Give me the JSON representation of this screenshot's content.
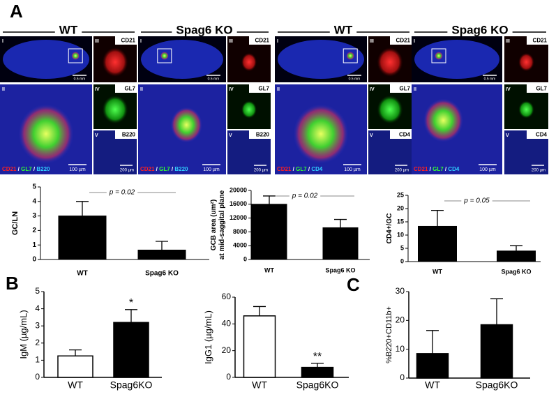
{
  "panel_labels": [
    "A",
    "B",
    "C"
  ],
  "image_panels": [
    {
      "title": "WT",
      "ids": [
        "I",
        "II",
        "III",
        "IV",
        "V"
      ],
      "markers": [
        "CD21",
        "GL7",
        "B220"
      ],
      "legend": [
        "CD21",
        " / ",
        "GL7",
        " / ",
        "B220"
      ],
      "scales": [
        "0.5 mm",
        "100 µm",
        "200 µm"
      ]
    },
    {
      "title": "Spag6 KO",
      "ids": [
        "I",
        "II",
        "III",
        "IV",
        "V"
      ],
      "markers": [
        "CD21",
        "GL7",
        "B220"
      ],
      "legend": [
        "CD21",
        " / ",
        "GL7",
        " / ",
        "B220"
      ],
      "scales": [
        "0.5 mm",
        "100 µm",
        "200 µm"
      ]
    },
    {
      "title": "WT",
      "ids": [
        "I",
        "II",
        "III",
        "IV",
        "V"
      ],
      "markers": [
        "CD21",
        "GL7",
        "CD4"
      ],
      "legend": [
        "CD21",
        " / ",
        "GL7",
        " / ",
        "CD4"
      ],
      "scales": [
        "0.5 mm",
        "100 µm",
        "200 µm"
      ]
    },
    {
      "title": "Spag6 KO",
      "ids": [
        "I",
        "II",
        "III",
        "IV",
        "V"
      ],
      "markers": [
        "CD21",
        "GL7",
        "CD4"
      ],
      "legend": [
        "CD21",
        " / ",
        "GL7",
        " / ",
        "CD4"
      ],
      "scales": [
        "0.5 mm",
        "100 µm",
        "200 µm"
      ]
    }
  ],
  "chart_data": [
    {
      "type": "bar",
      "ylabel": [
        "GC/LN"
      ],
      "categories": [
        "WT",
        "Spag6 KO"
      ],
      "values": [
        3.0,
        0.65
      ],
      "errors": [
        1.0,
        0.6
      ],
      "colors": [
        "#000000",
        "#000000"
      ],
      "ylim": [
        0,
        5
      ],
      "yticks": [
        0,
        1,
        2,
        3,
        4,
        5
      ],
      "annotation": "p = 0.02"
    },
    {
      "type": "bar",
      "ylabel": [
        "GCB area (um²)",
        "at mid-saggital plane"
      ],
      "categories": [
        "WT",
        "Spag6 KO"
      ],
      "values": [
        16000,
        9200
      ],
      "errors": [
        2400,
        2400
      ],
      "colors": [
        "#000000",
        "#000000"
      ],
      "ylim": [
        0,
        20000
      ],
      "yticks": [
        0,
        4000,
        8000,
        12000,
        16000,
        20000
      ],
      "annotation": "p = 0.02"
    },
    {
      "type": "bar",
      "ylabel": [
        "CD4+/GC"
      ],
      "categories": [
        "WT",
        "Spag6 KO"
      ],
      "values": [
        13.3,
        4
      ],
      "errors": [
        6,
        2
      ],
      "colors": [
        "#000000",
        "#000000"
      ],
      "ylim": [
        0,
        25
      ],
      "yticks": [
        0,
        5,
        10,
        15,
        20,
        25
      ],
      "annotation": "p = 0.05"
    },
    {
      "type": "bar",
      "ylabel": [
        "IgM (µg/mL)"
      ],
      "categories": [
        "WT",
        "Spag6KO"
      ],
      "values": [
        1.25,
        3.2
      ],
      "errors": [
        0.35,
        0.75
      ],
      "colors": [
        "#ffffff",
        "#000000"
      ],
      "ylim": [
        0,
        5
      ],
      "yticks": [
        0,
        1,
        2,
        3,
        4,
        5
      ],
      "annotation": "*"
    },
    {
      "type": "bar",
      "ylabel": [
        "IgG1 (µg/mL)"
      ],
      "categories": [
        "WT",
        "Spag6KO"
      ],
      "values": [
        46,
        7.5
      ],
      "errors": [
        7,
        3
      ],
      "colors": [
        "#ffffff",
        "#000000"
      ],
      "ylim": [
        0,
        60
      ],
      "yticks": [
        0,
        20,
        40,
        60
      ],
      "annotation": "**"
    },
    {
      "type": "bar",
      "ylabel": [
        "%B220+CD11b+"
      ],
      "categories": [
        "WT",
        "Spag6KO"
      ],
      "values": [
        8.5,
        18.5
      ],
      "errors": [
        8,
        9
      ],
      "colors": [
        "#000000",
        "#000000"
      ],
      "ylim": [
        0,
        30
      ],
      "yticks": [
        0,
        10,
        20,
        30
      ]
    }
  ]
}
